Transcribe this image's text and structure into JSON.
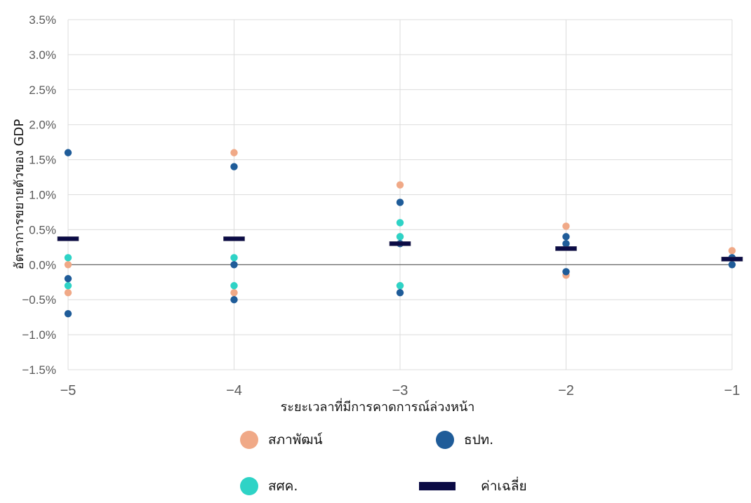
{
  "chart_data": {
    "type": "scatter",
    "title": "",
    "xlabel": "ระยะเวลาที่มีการคาดการณ์ล่วงหน้า",
    "ylabel": "อัตราการขยายตัวของ GDP",
    "xlim": [
      -5,
      -1
    ],
    "ylim": [
      -1.5,
      3.5
    ],
    "x_ticks": [
      -5,
      -4,
      -3,
      -2,
      -1
    ],
    "x_tick_labels": [
      "−5",
      "−4",
      "−3",
      "−2",
      "−1"
    ],
    "y_ticks": [
      -1.5,
      -1.0,
      -0.5,
      0.0,
      0.5,
      1.0,
      1.5,
      2.0,
      2.5,
      3.0,
      3.5
    ],
    "y_tick_labels": [
      "−1.5%",
      "−1.0%",
      "−0.5%",
      "0.0%",
      "0.5%",
      "1.0%",
      "1.5%",
      "2.0%",
      "2.5%",
      "3.0%",
      "3.5%"
    ],
    "grid": true,
    "legend_position": "bottom",
    "series": [
      {
        "name": "สภาพัฒน์",
        "marker": "circle",
        "color": "#f0a987",
        "points": [
          {
            "x": -5,
            "y": 0.0
          },
          {
            "x": -5,
            "y": -0.4
          },
          {
            "x": -4,
            "y": 1.6
          },
          {
            "x": -4,
            "y": -0.4
          },
          {
            "x": -3,
            "y": 1.14
          },
          {
            "x": -3,
            "y": 0.4
          },
          {
            "x": -3,
            "y": -0.3
          },
          {
            "x": -2,
            "y": 0.55
          },
          {
            "x": -2,
            "y": -0.15
          },
          {
            "x": -1,
            "y": 0.2
          }
        ]
      },
      {
        "name": "สศค.",
        "marker": "circle",
        "color": "#2ed3c6",
        "points": [
          {
            "x": -5,
            "y": 0.1
          },
          {
            "x": -5,
            "y": -0.3
          },
          {
            "x": -4,
            "y": 0.1
          },
          {
            "x": -4,
            "y": -0.3
          },
          {
            "x": -3,
            "y": 0.6
          },
          {
            "x": -3,
            "y": 0.4
          },
          {
            "x": -3,
            "y": -0.3
          }
        ]
      },
      {
        "name": "ธปท.",
        "marker": "circle",
        "color": "#1f5c99",
        "points": [
          {
            "x": -5,
            "y": 1.6
          },
          {
            "x": -5,
            "y": -0.2
          },
          {
            "x": -5,
            "y": -0.7
          },
          {
            "x": -4,
            "y": 1.4
          },
          {
            "x": -4,
            "y": 0.0
          },
          {
            "x": -4,
            "y": -0.5
          },
          {
            "x": -3,
            "y": 0.89
          },
          {
            "x": -3,
            "y": 0.3
          },
          {
            "x": -3,
            "y": -0.4
          },
          {
            "x": -2,
            "y": 0.4
          },
          {
            "x": -2,
            "y": 0.3
          },
          {
            "x": -2,
            "y": -0.1
          },
          {
            "x": -1,
            "y": 0.1
          },
          {
            "x": -1,
            "y": 0.0
          }
        ]
      },
      {
        "name": "ค่าเฉลี่ย",
        "marker": "bar",
        "color": "#0b0b45",
        "points": [
          {
            "x": -5,
            "y": 0.37
          },
          {
            "x": -4,
            "y": 0.37
          },
          {
            "x": -3,
            "y": 0.3
          },
          {
            "x": -2,
            "y": 0.23
          },
          {
            "x": -1,
            "y": 0.08
          }
        ]
      }
    ],
    "legend": {
      "entries": [
        {
          "label": "สภาพัฒน์",
          "color": "#f0a987",
          "shape": "circle"
        },
        {
          "label": "ธปท.",
          "color": "#1f5c99",
          "shape": "circle"
        },
        {
          "label": "สศค.",
          "color": "#2ed3c6",
          "shape": "circle"
        },
        {
          "label": "ค่าเฉลี่ย",
          "color": "#0b0b45",
          "shape": "bar"
        }
      ]
    },
    "colors": {
      "grid": "#dcdcdc",
      "zero_line": "#555555"
    }
  }
}
